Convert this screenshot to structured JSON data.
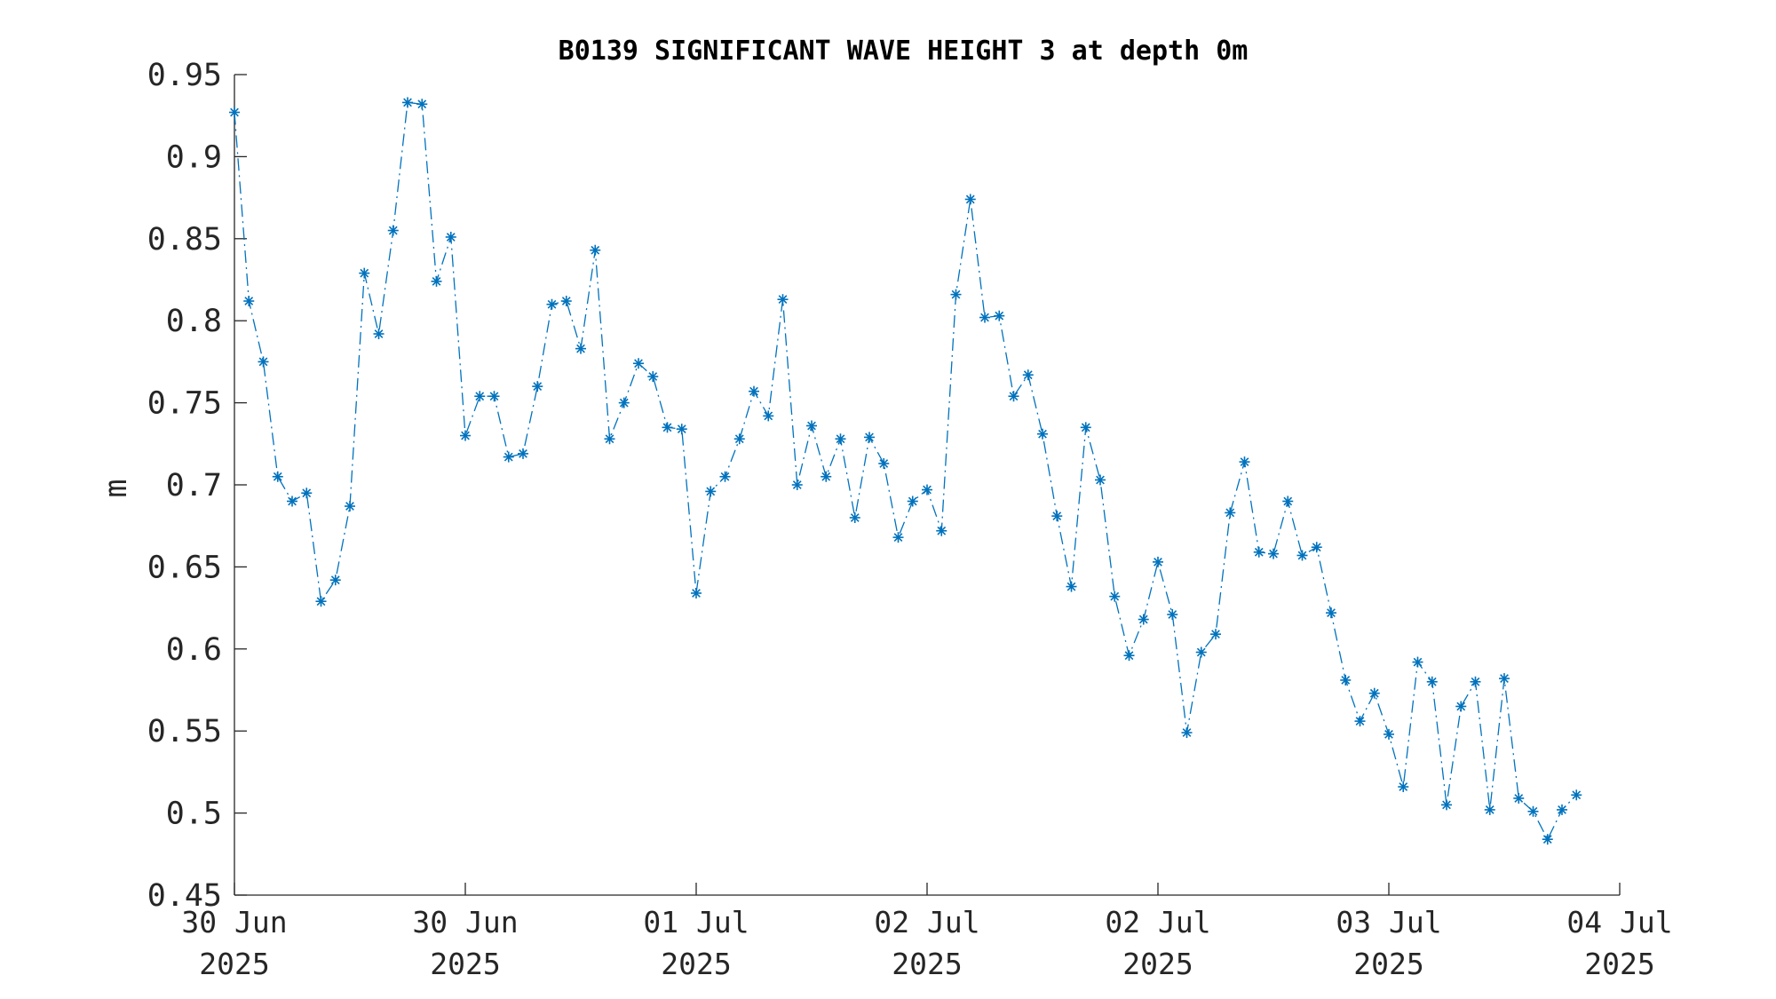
{
  "chart_data": {
    "type": "line",
    "title": "B0139 SIGNIFICANT WAVE HEIGHT 3 at depth 0m",
    "xlabel": "",
    "ylabel": "m",
    "ylim": [
      0.45,
      0.95
    ],
    "yticks": [
      0.45,
      0.5,
      0.55,
      0.6,
      0.65,
      0.7,
      0.75,
      0.8,
      0.85,
      0.9,
      0.95
    ],
    "ytick_labels": [
      "0.45",
      "0.5",
      "0.55",
      "0.6",
      "0.65",
      "0.7",
      "0.75",
      "0.8",
      "0.85",
      "0.9",
      "0.95"
    ],
    "xlim": [
      0,
      96
    ],
    "xticks": [
      0,
      16,
      32,
      48,
      64,
      80,
      96
    ],
    "xtick_labels": [
      [
        "30 Jun",
        "2025"
      ],
      [
        "30 Jun",
        "2025"
      ],
      [
        "01 Jul",
        "2025"
      ],
      [
        "02 Jul",
        "2025"
      ],
      [
        "02 Jul",
        "2025"
      ],
      [
        "03 Jul",
        "2025"
      ],
      [
        "04 Jul",
        "2025"
      ]
    ],
    "grid": false,
    "series": [
      {
        "marker": "asterisk",
        "line_style": "dash-dot",
        "color": "#0072BD",
        "values": [
          0.927,
          0.812,
          0.775,
          0.705,
          0.69,
          0.695,
          0.629,
          0.642,
          0.687,
          0.829,
          0.792,
          0.855,
          0.933,
          0.932,
          0.824,
          0.851,
          0.73,
          0.754,
          0.754,
          0.717,
          0.719,
          0.76,
          0.81,
          0.812,
          0.783,
          0.843,
          0.728,
          0.75,
          0.774,
          0.766,
          0.735,
          0.734,
          0.634,
          0.696,
          0.705,
          0.728,
          0.757,
          0.742,
          0.813,
          0.7,
          0.736,
          0.705,
          0.728,
          0.68,
          0.729,
          0.713,
          0.668,
          0.69,
          0.697,
          0.672,
          0.816,
          0.874,
          0.802,
          0.803,
          0.754,
          0.767,
          0.731,
          0.681,
          0.638,
          0.735,
          0.703,
          0.632,
          0.596,
          0.618,
          0.653,
          0.621,
          0.549,
          0.598,
          0.609,
          0.683,
          0.714,
          0.659,
          0.658,
          0.69,
          0.657,
          0.662,
          0.622,
          0.581,
          0.556,
          0.573,
          0.548,
          0.516,
          0.592,
          0.58,
          0.505,
          0.565,
          0.58,
          0.502,
          0.582,
          0.509,
          0.501,
          0.484,
          0.502,
          0.511
        ]
      }
    ]
  }
}
